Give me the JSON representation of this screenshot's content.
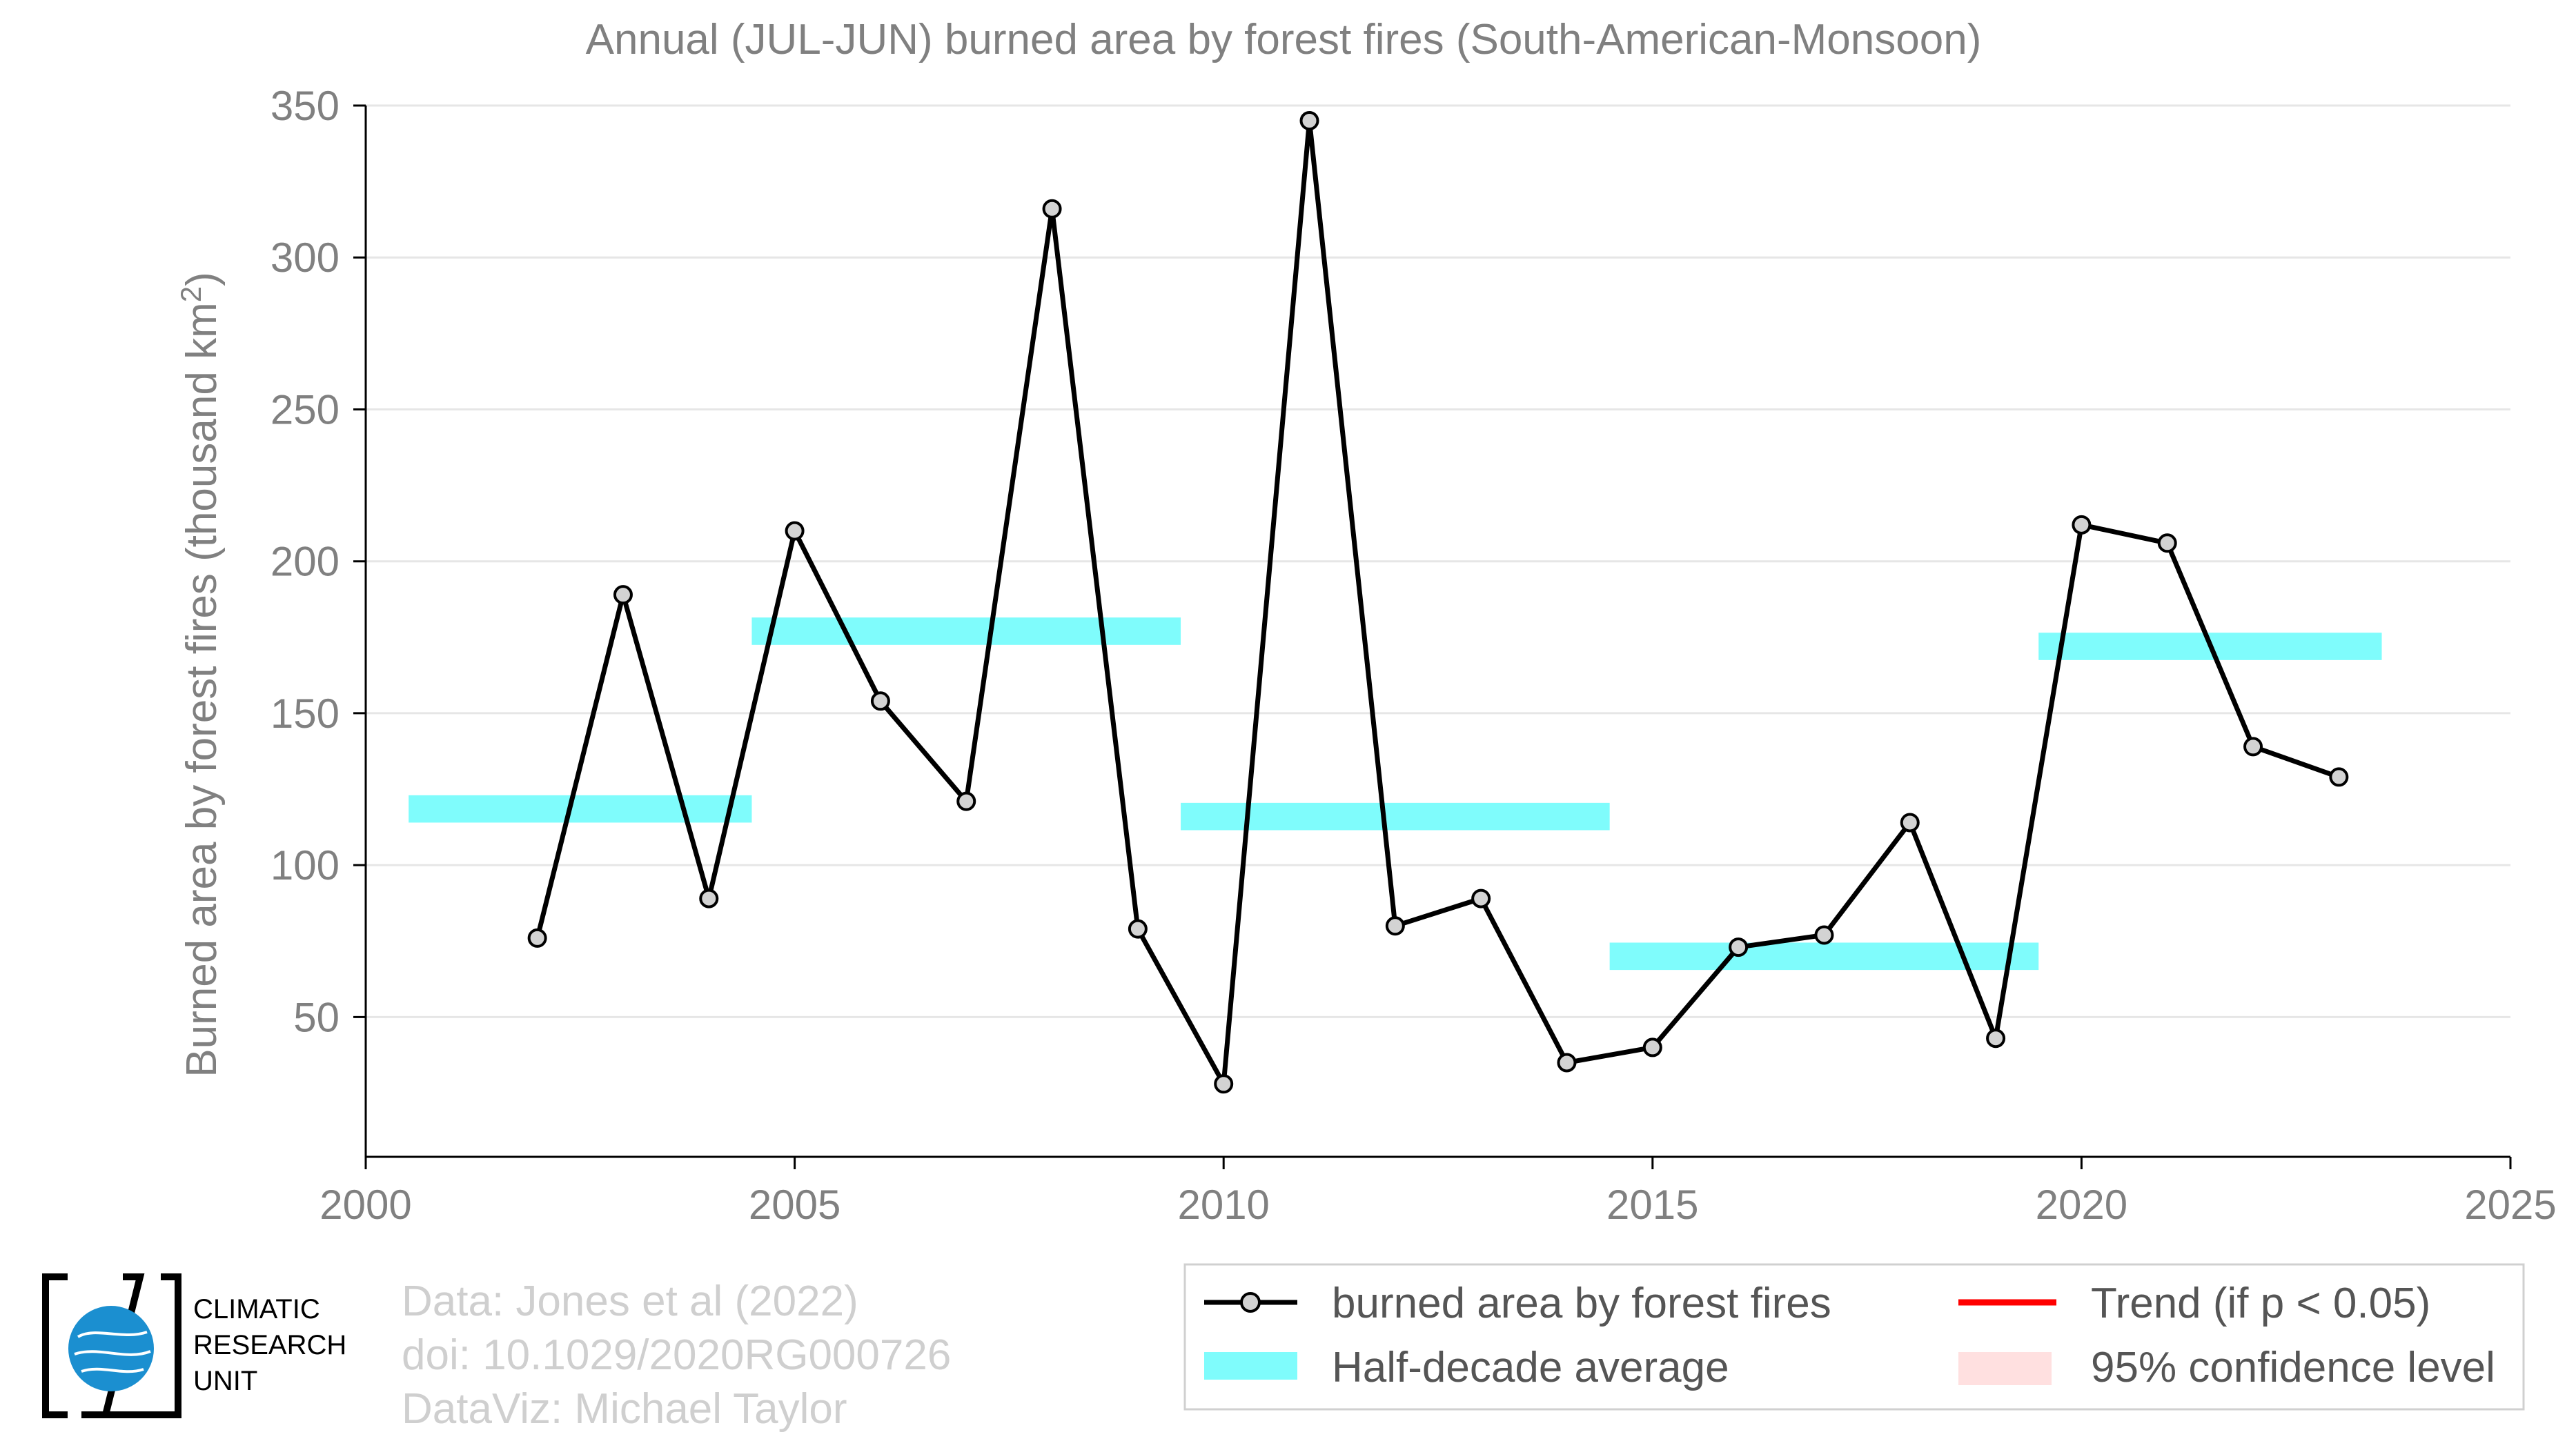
{
  "chart_data": {
    "type": "line",
    "title": "Annual (JUL-JUN) burned area by forest fires (South-American-Monsoon)",
    "ylabel": "Burned area by forest fires (thousand km²)",
    "xlabel": "",
    "xlim": [
      2000,
      2025
    ],
    "ylim": [
      4,
      350
    ],
    "x_ticks": [
      "2000",
      "2005",
      "2010",
      "2015",
      "2020",
      "2025"
    ],
    "y_ticks": [
      "50",
      "100",
      "150",
      "200",
      "250",
      "300",
      "350"
    ],
    "grid": "horizontal",
    "legend_position": "bottom-right",
    "series": [
      {
        "name": "burned area by forest fires",
        "color": "#000000",
        "marker_color": "#d3d3d3",
        "x": [
          2002,
          2003,
          2004,
          2005,
          2006,
          2007,
          2008,
          2009,
          2010,
          2011,
          2012,
          2013,
          2014,
          2015,
          2016,
          2017,
          2018,
          2019,
          2020,
          2021,
          2022,
          2023
        ],
        "y": [
          76,
          189,
          89,
          210,
          154,
          121,
          316,
          79,
          28,
          345,
          80,
          89,
          35,
          40,
          73,
          77,
          114,
          43,
          212,
          206,
          139,
          129
        ]
      }
    ],
    "half_decade_average": {
      "color": "#7ffcfc",
      "segments": [
        {
          "x0": 2000.5,
          "x1": 2004.5,
          "y": 118.5
        },
        {
          "x0": 2004.5,
          "x1": 2009.5,
          "y": 177
        },
        {
          "x0": 2009.5,
          "x1": 2014.5,
          "y": 116
        },
        {
          "x0": 2014.5,
          "x1": 2019.5,
          "y": 70
        },
        {
          "x0": 2019.5,
          "x1": 2023.5,
          "y": 172
        }
      ]
    },
    "legend": [
      {
        "label": "burned area by forest fires",
        "kind": "line-marker",
        "color": "#000000"
      },
      {
        "label": "Half-decade average",
        "kind": "band",
        "color": "#7ffcfc"
      },
      {
        "label": "Trend (if p < 0.05)",
        "kind": "line",
        "color": "#ff0000"
      },
      {
        "label": "95% confidence level",
        "kind": "band",
        "color": "#ffe0e0"
      }
    ]
  },
  "credits": {
    "line1": "Data: Jones et al (2022)",
    "line2": "doi: 10.1029/2020RG000726",
    "line3": "DataViz: Michael Taylor"
  },
  "logo": {
    "line1": "CLIMATIC",
    "line2": "RESEARCH",
    "line3": "UNIT",
    "globe_color": "#1b8fd0"
  }
}
